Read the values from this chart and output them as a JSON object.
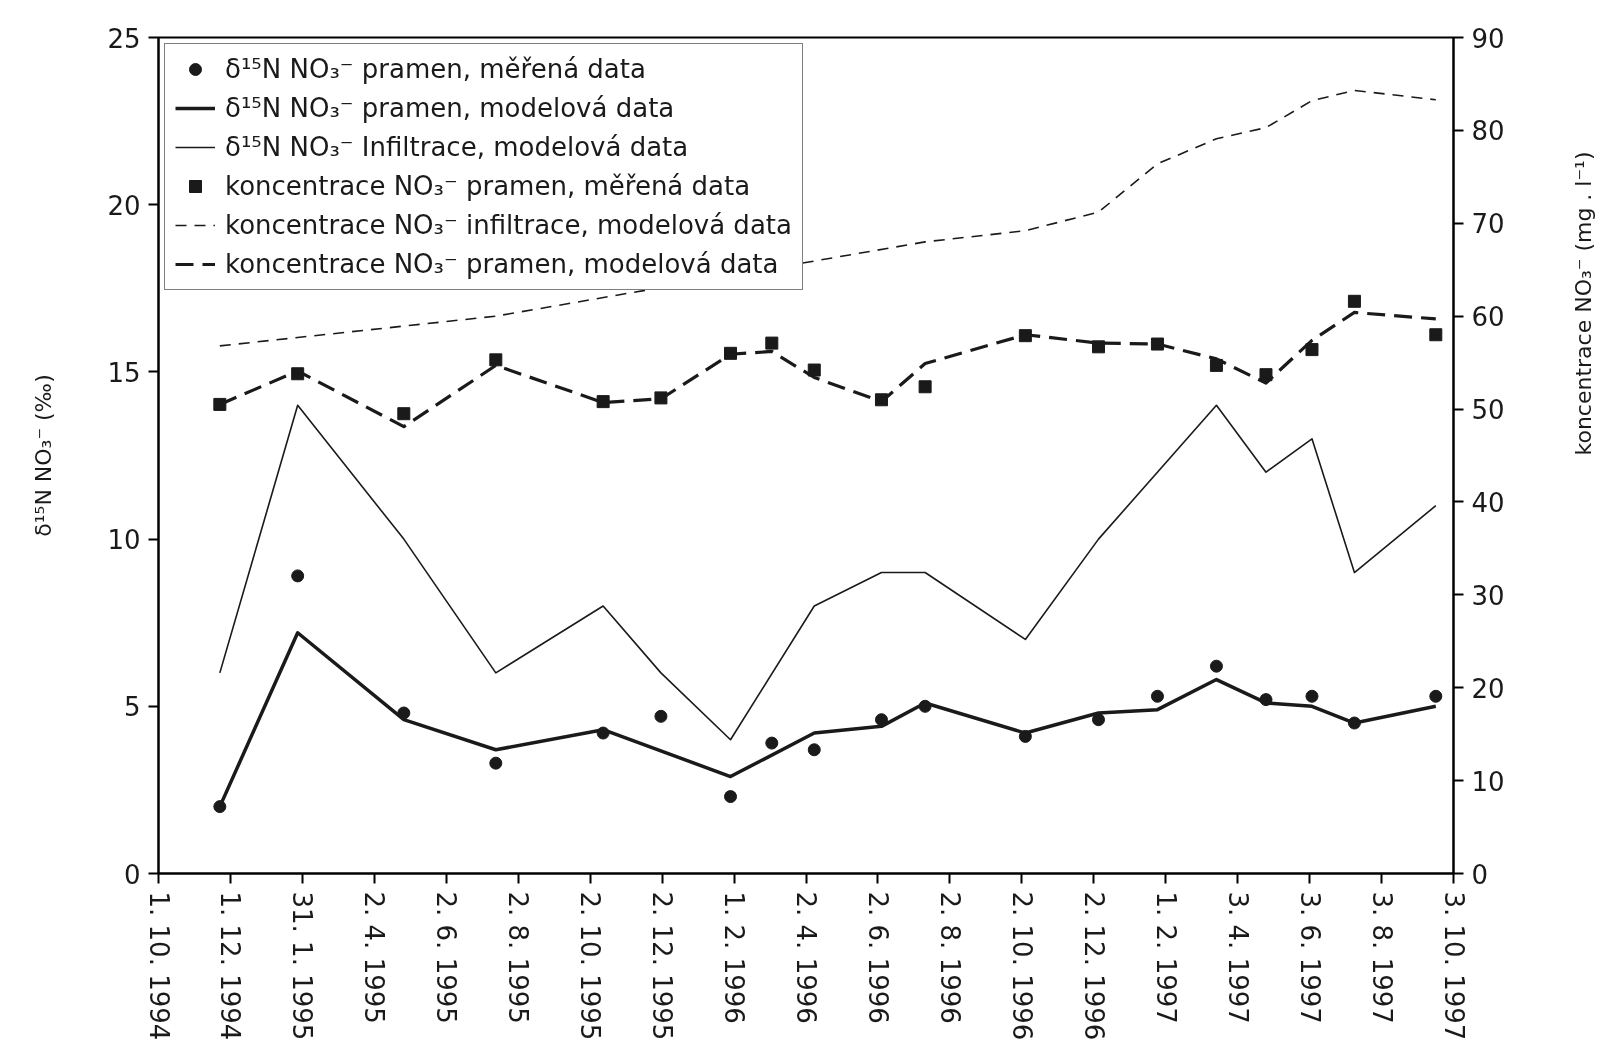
{
  "chart_data": {
    "type": "line",
    "ylabel": "δ¹⁵N NO₃⁻ (‰)",
    "y2label": "koncentrace NO₃⁻ (mg . l⁻¹)",
    "x": [
      "1994-11-22",
      "1995-01-27",
      "1995-04-27",
      "1995-07-14",
      "1995-10-13",
      "1995-12-01",
      "1996-01-29",
      "1996-03-04",
      "1996-04-09",
      "1996-06-05",
      "1996-07-12",
      "1996-10-05",
      "1996-12-06",
      "1997-01-25",
      "1997-03-16",
      "1997-04-27",
      "1997-06-05",
      "1997-07-11",
      "1997-09-18"
    ],
    "xlim": [
      "1994-10-01",
      "1997-10-03"
    ],
    "xticks": [
      {
        "value": "1994-10-01",
        "label": "1. 10. 1994"
      },
      {
        "value": "1994-12-01",
        "label": "1. 12. 1994"
      },
      {
        "value": "1995-01-31",
        "label": "31. 1. 1995"
      },
      {
        "value": "1995-04-02",
        "label": "2. 4. 1995"
      },
      {
        "value": "1995-06-02",
        "label": "2. 6. 1995"
      },
      {
        "value": "1995-08-02",
        "label": "2. 8. 1995"
      },
      {
        "value": "1995-10-02",
        "label": "2. 10. 1995"
      },
      {
        "value": "1995-12-02",
        "label": "2. 12. 1995"
      },
      {
        "value": "1996-02-01",
        "label": "1. 2. 1996"
      },
      {
        "value": "1996-04-02",
        "label": "2. 4. 1996"
      },
      {
        "value": "1996-06-02",
        "label": "2. 6. 1996"
      },
      {
        "value": "1996-08-02",
        "label": "2. 8. 1996"
      },
      {
        "value": "1996-10-02",
        "label": "2. 10. 1996"
      },
      {
        "value": "1996-12-02",
        "label": "2. 12. 1996"
      },
      {
        "value": "1997-02-01",
        "label": "1. 2. 1997"
      },
      {
        "value": "1997-04-03",
        "label": "3. 4. 1997"
      },
      {
        "value": "1997-06-03",
        "label": "3. 6. 1997"
      },
      {
        "value": "1997-08-03",
        "label": "3. 8. 1997"
      },
      {
        "value": "1997-10-03",
        "label": "3. 10. 1997"
      }
    ],
    "ylim": [
      0,
      25
    ],
    "yticks": [
      0,
      5,
      10,
      15,
      20,
      25
    ],
    "y2lim": [
      0,
      90
    ],
    "y2ticks": [
      0,
      10,
      20,
      30,
      40,
      50,
      60,
      70,
      80,
      90
    ],
    "grid": false,
    "legend": "top left",
    "series": [
      {
        "name": "δ¹⁵N NO₃⁻ pramen, měřená data",
        "type": "scatter",
        "marker": "circle",
        "color": "#1a1a1a",
        "values": [
          2.0,
          8.9,
          4.8,
          3.3,
          4.2,
          4.7,
          2.3,
          3.9,
          3.7,
          4.6,
          5.0,
          4.1,
          4.6,
          5.3,
          6.2,
          5.2,
          5.3,
          4.5,
          5.3
        ]
      },
      {
        "name": "δ¹⁵N NO₃⁻ pramen, modelová data",
        "line_style": "solid",
        "color": "#1a1a1a",
        "x": [
          "1994-11-22",
          "1995-01-27",
          "1995-04-27",
          "1995-07-14",
          "1995-10-13",
          "1996-01-29",
          "1996-04-09",
          "1996-06-05",
          "1996-07-12",
          "1996-10-05",
          "1996-12-06",
          "1997-01-25",
          "1997-03-16",
          "1997-04-27",
          "1997-06-05",
          "1997-07-11",
          "1997-09-18"
        ],
        "values": [
          2.0,
          7.2,
          4.6,
          3.7,
          4.3,
          2.9,
          4.2,
          4.4,
          5.1,
          4.2,
          4.8,
          4.9,
          5.8,
          5.1,
          5.0,
          4.5,
          5.0
        ]
      },
      {
        "name": "δ¹⁵N NO₃⁻ Infiltrace, modelová data",
        "line_style": "solid",
        "color": "#1a1a1a",
        "x": [
          "1994-11-22",
          "1995-01-27",
          "1995-04-27",
          "1995-07-14",
          "1995-10-13",
          "1995-12-01",
          "1996-01-29",
          "1996-04-09",
          "1996-06-05",
          "1996-07-12",
          "1996-10-05",
          "1996-12-06",
          "1997-03-16",
          "1997-04-27",
          "1997-06-05",
          "1997-07-11",
          "1997-09-18"
        ],
        "values": [
          6,
          14,
          10,
          6,
          8,
          6,
          4,
          8,
          9,
          9,
          7,
          10,
          14,
          12,
          13,
          9,
          11
        ]
      },
      {
        "name": "koncentrace NO₃⁻ pramen, měřená data",
        "type": "scatter",
        "marker": "square",
        "axis": "y2",
        "color": "#1a1a1a",
        "values": [
          50.5,
          53.8,
          49.5,
          55.3,
          50.8,
          51.2,
          56.0,
          57.1,
          54.2,
          51.0,
          52.4,
          57.9,
          56.7,
          57.0,
          54.7,
          53.7,
          56.4,
          61.6,
          58.0
        ]
      },
      {
        "name": "koncentrace NO₃⁻ infiltrace, modelová data",
        "line_style": "dashed",
        "axis": "y2",
        "color": "#1a1a1a",
        "x": [
          "1994-11-22",
          "1995-07-14",
          "1996-07-12",
          "1996-10-05",
          "1996-12-06",
          "1997-01-25",
          "1997-03-16",
          "1997-04-27",
          "1997-06-05",
          "1997-07-11",
          "1997-09-18"
        ],
        "values": [
          56.8,
          60.0,
          68.0,
          69.2,
          71.2,
          76.4,
          79.1,
          80.3,
          83.2,
          84.3,
          83.3
        ]
      },
      {
        "name": "koncentrace NO₃⁻ pramen, modelová data",
        "line_style": "dashed",
        "axis": "y2",
        "color": "#1a1a1a",
        "values": [
          50.5,
          54.1,
          48.1,
          54.7,
          50.7,
          51.1,
          55.9,
          56.2,
          53.4,
          50.8,
          54.9,
          58.0,
          57.1,
          57.0,
          55.4,
          52.8,
          57.4,
          60.4,
          59.7
        ]
      }
    ]
  }
}
